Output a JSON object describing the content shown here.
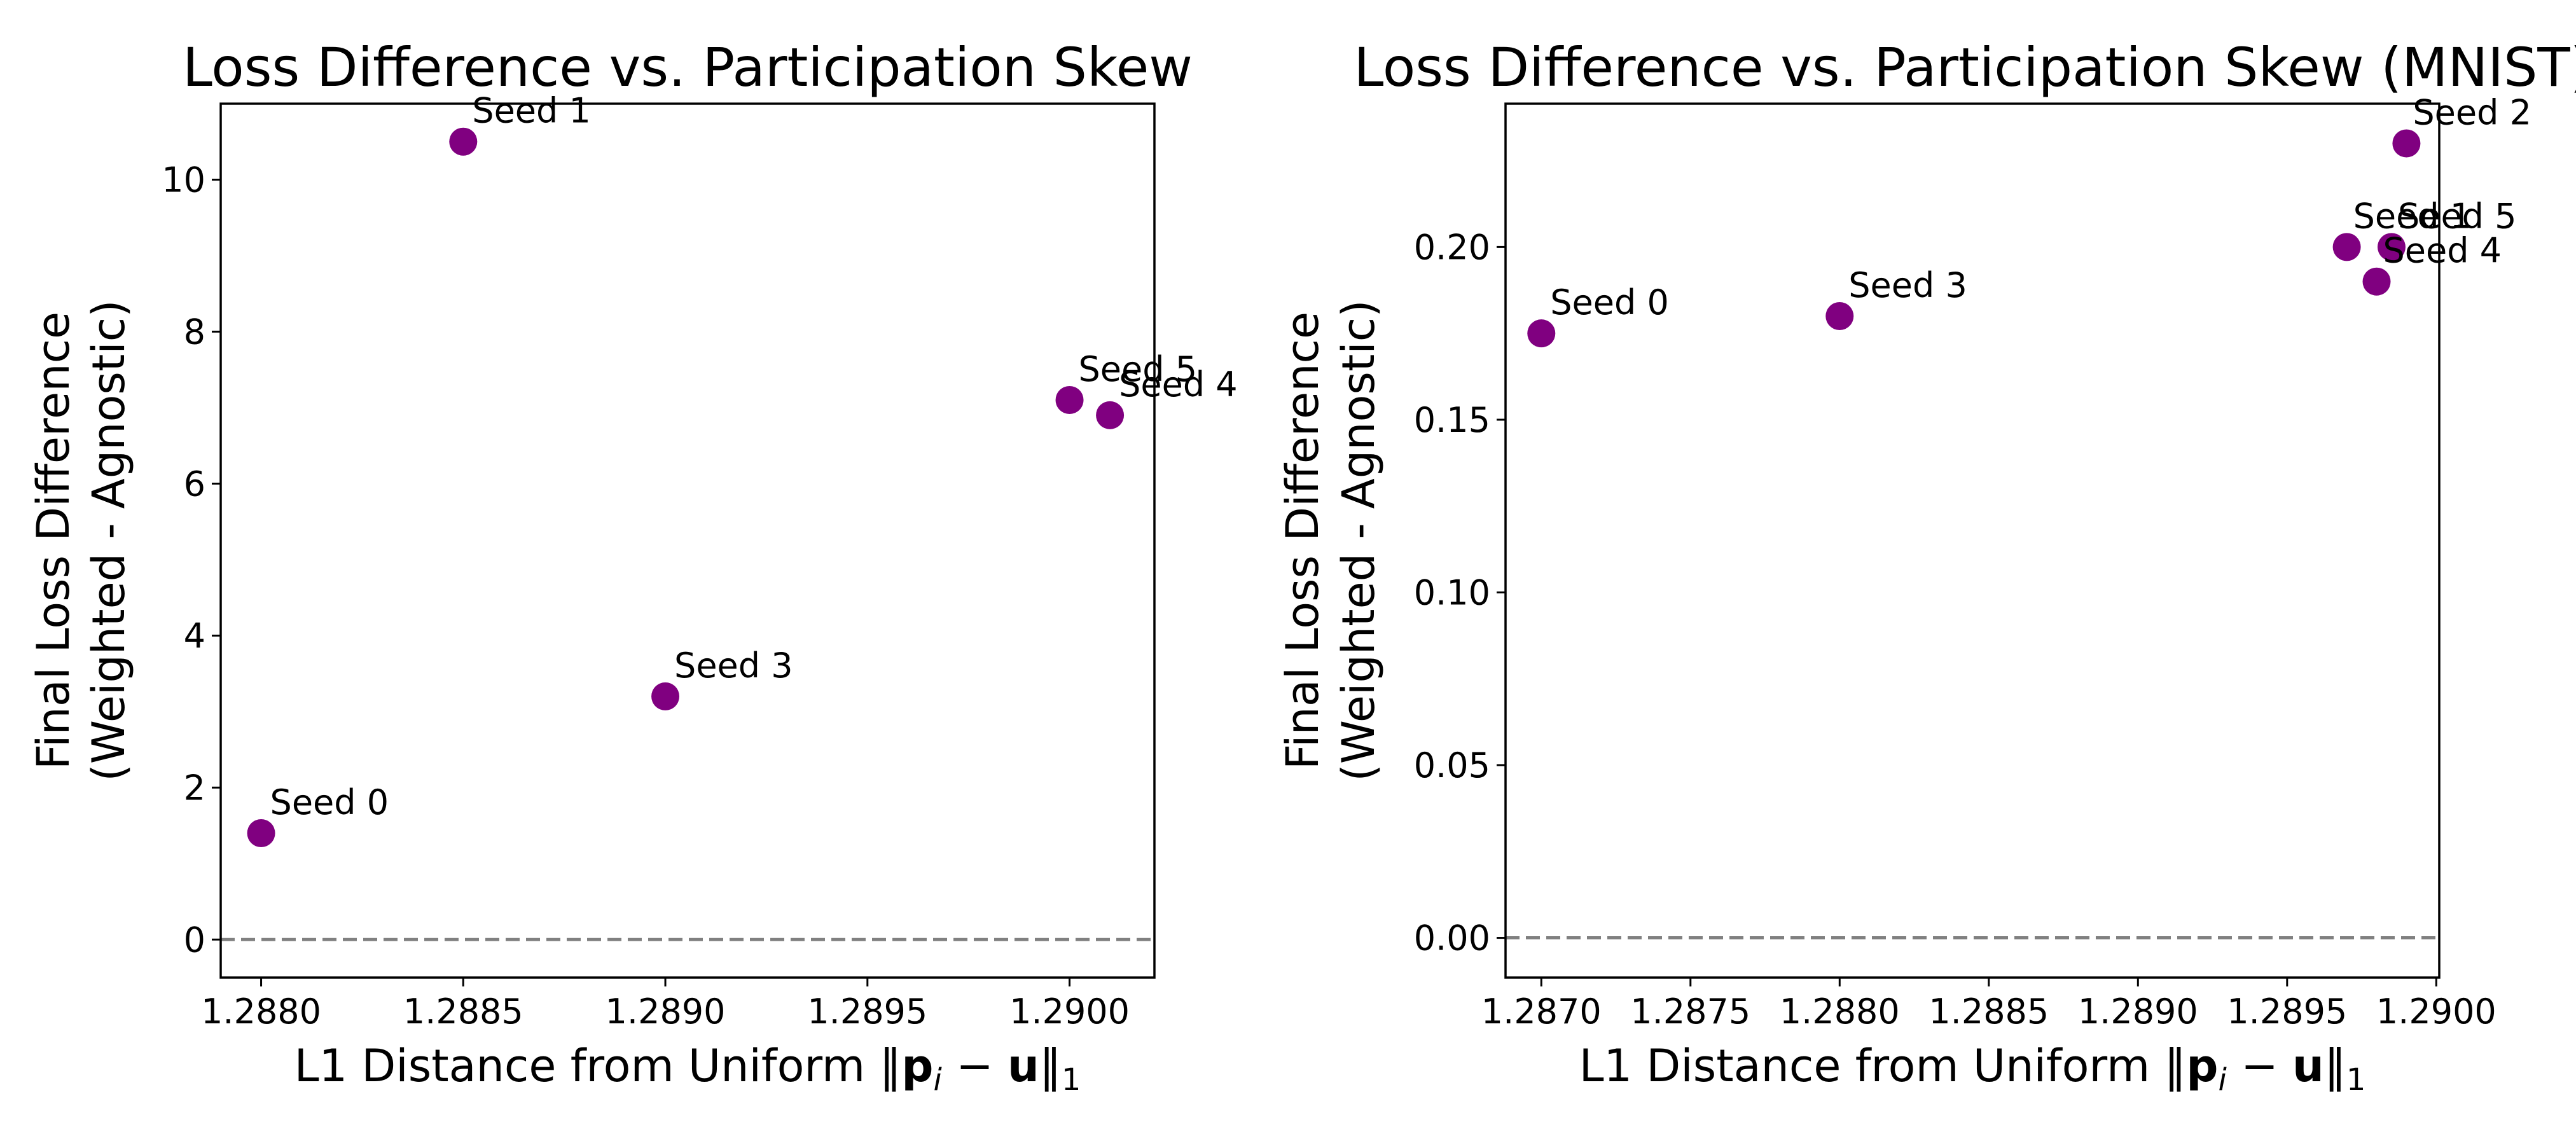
{
  "colors": {
    "marker": "#800080",
    "zero_line": "#808080",
    "frame": "#000000"
  },
  "chart_data": [
    {
      "type": "scatter",
      "title": "Loss Difference vs. Participation Skew",
      "xlabel": "L1 Distance from Uniform ‖p_i − u‖_1",
      "ylabel": [
        "Final Loss Difference",
        "(Weighted - Agnostic)"
      ],
      "xlim": [
        1.2879,
        1.29021
      ],
      "ylim": [
        -0.5,
        11.0
      ],
      "x_ticks": [
        1.288,
        1.2885,
        1.289,
        1.2895,
        1.29
      ],
      "x_tick_labels": [
        "1.2880",
        "1.2885",
        "1.2890",
        "1.2895",
        "1.2900"
      ],
      "y_ticks": [
        0,
        2,
        4,
        6,
        8,
        10
      ],
      "y_tick_labels": [
        "0",
        "2",
        "4",
        "6",
        "8",
        "10"
      ],
      "reference_line": {
        "y": 0,
        "style": "dashed"
      },
      "grid": false,
      "points": [
        {
          "label": "Seed 0",
          "x": 1.288,
          "y": 1.4
        },
        {
          "label": "Seed 1",
          "x": 1.2885,
          "y": 10.5
        },
        {
          "label": "Seed 3",
          "x": 1.289,
          "y": 3.2
        },
        {
          "label": "Seed 5",
          "x": 1.29,
          "y": 7.1
        },
        {
          "label": "Seed 4",
          "x": 1.2901,
          "y": 6.9
        }
      ]
    },
    {
      "type": "scatter",
      "title": "Loss Difference vs. Participation Skew (MNIST)",
      "xlabel": "L1 Distance from Uniform ‖p_i − u‖_1",
      "ylabel": [
        "Final Loss Difference",
        "(Weighted - Agnostic)"
      ],
      "xlim": [
        1.28688,
        1.29001
      ],
      "ylim": [
        -0.0115,
        0.2415
      ],
      "x_ticks": [
        1.287,
        1.2875,
        1.288,
        1.2885,
        1.289,
        1.2895,
        1.29
      ],
      "x_tick_labels": [
        "1.2870",
        "1.2875",
        "1.2880",
        "1.2885",
        "1.2890",
        "1.2895",
        "1.2900"
      ],
      "y_ticks": [
        0.0,
        0.05,
        0.1,
        0.15,
        0.2
      ],
      "y_tick_labels": [
        "0.00",
        "0.05",
        "0.10",
        "0.15",
        "0.20"
      ],
      "reference_line": {
        "y": 0,
        "style": "dashed"
      },
      "grid": false,
      "points": [
        {
          "label": "Seed 0",
          "x": 1.287,
          "y": 0.175
        },
        {
          "label": "Seed 3",
          "x": 1.288,
          "y": 0.18
        },
        {
          "label": "Seed 1",
          "x": 1.2897,
          "y": 0.2
        },
        {
          "label": "Seed 5",
          "x": 1.28985,
          "y": 0.2
        },
        {
          "label": "Seed 4",
          "x": 1.2898,
          "y": 0.19
        },
        {
          "label": "Seed 2",
          "x": 1.2899,
          "y": 0.23
        }
      ]
    }
  ]
}
